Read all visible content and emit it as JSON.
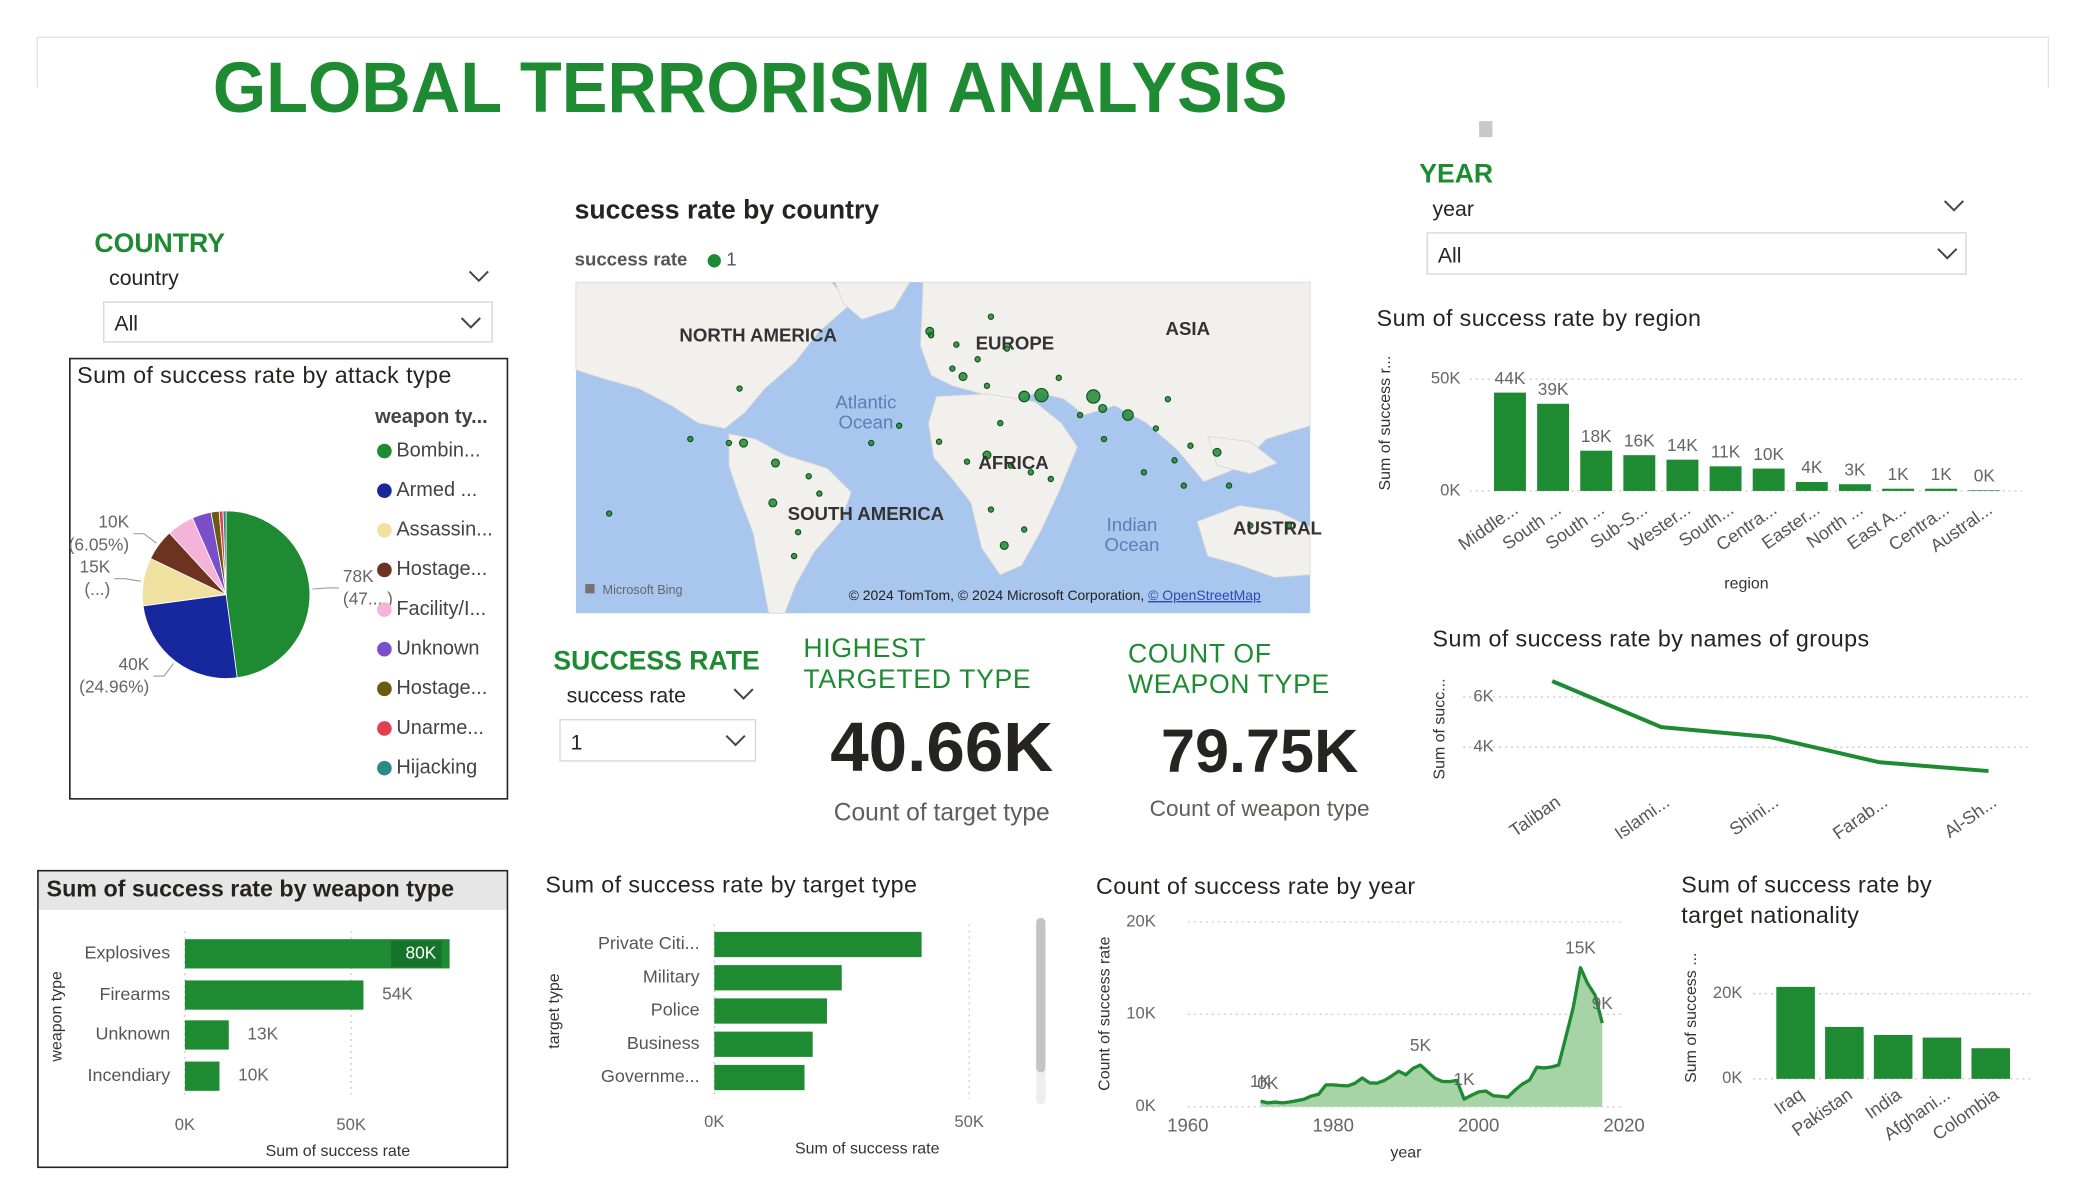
{
  "title": "GLOBAL TERRORISM ANALYSIS",
  "slicers": [
    {
      "header": "COUNTRY",
      "field": "country",
      "selected": "All"
    },
    {
      "header": "YEAR",
      "field": "year",
      "selected": "All"
    },
    {
      "header": "SUCCESS RATE",
      "field": "success rate",
      "selected": "1"
    }
  ],
  "cards": [
    {
      "header": "HIGHEST TARGETED TYPE",
      "value": "40.66K",
      "label": "Count of target type"
    },
    {
      "header": "COUNT OF WEAPON TYPE",
      "value": "79.75K",
      "label": "Count of weapon type"
    }
  ],
  "map": {
    "title": "success rate by country",
    "legend_title": "success rate",
    "legend_item": "1",
    "color": "#1e8a32",
    "labels": [
      "NORTH AMERICA",
      "EUROPE",
      "ASIA",
      "Atlantic Ocean",
      "AFRICA",
      "SOUTH AMERICA",
      "Indian Ocean",
      "AUSTRAL"
    ],
    "provider": "Microsoft Bing",
    "attribution": "© 2024 TomTom, © 2024 Microsoft Corporation,",
    "attribution_link": "© OpenStreetMap"
  },
  "chart_data": [
    {
      "type": "pie",
      "title": "Sum of success rate by attack type",
      "legend_title": "weapon ty...",
      "categories": [
        "Bombin...",
        "Armed ...",
        "Assassin...",
        "Hostage...",
        "Facility/I...",
        "Unknown",
        "Hostage...",
        "Unarme...",
        "Hijacking"
      ],
      "values": [
        77600,
        40435,
        15000,
        9801,
        8500,
        6000,
        2500,
        1200,
        964
      ],
      "value_labels": [
        "78K",
        "40K",
        "15K",
        "10K",
        null,
        null,
        null,
        null,
        null
      ],
      "percent_labels": [
        "(47....)",
        "(24.96%)",
        "(...)",
        "(6.05%)",
        null,
        null,
        null,
        null,
        null
      ],
      "colors": [
        "#1e8a32",
        "#17279e",
        "#f0e1a0",
        "#6e3220",
        "#f5b3da",
        "#7a4fc9",
        "#6b5a12",
        "#e0404f",
        "#2a8a8a"
      ]
    },
    {
      "type": "bar",
      "orientation": "horizontal",
      "title": "Sum of success rate by weapon type",
      "x_label": "Sum of success rate",
      "y_label": "weapon type",
      "categories": [
        "Explosives",
        "Firearms",
        "Unknown",
        "Incendiary"
      ],
      "values": [
        79600,
        53700,
        13200,
        10400
      ],
      "value_labels": [
        "80K",
        "54K",
        "13K",
        "10K"
      ],
      "color": "#1e8a32",
      "xlim": [
        0,
        92000
      ],
      "xticks": [
        {
          "value": 0,
          "label": "0K"
        },
        {
          "value": 50000,
          "label": "50K"
        }
      ],
      "grid": true
    },
    {
      "type": "bar",
      "orientation": "horizontal",
      "title": "Sum of success rate by target type",
      "x_label": "Sum of success rate",
      "y_label": "target type",
      "categories": [
        "Private Citi...",
        "Military",
        "Police",
        "Business",
        "Governme..."
      ],
      "values": [
        40660,
        25000,
        22100,
        19300,
        17700
      ],
      "color": "#1e8a32",
      "xlim": [
        0,
        60000
      ],
      "xticks": [
        {
          "value": 0,
          "label": "0K"
        },
        {
          "value": 50000,
          "label": "50K"
        }
      ],
      "grid": true
    },
    {
      "type": "bar",
      "orientation": "vertical",
      "title": "Sum of success rate by region",
      "x_label": "region",
      "y_label": "Sum of success r...",
      "categories": [
        "Middle...",
        "South ...",
        "South ...",
        "Sub-S...",
        "Wester...",
        "South...",
        "Centra...",
        "Easter...",
        "North ...",
        "East A...",
        "Centra...",
        "Austral..."
      ],
      "values": [
        44000,
        39000,
        18000,
        16000,
        14000,
        11000,
        10000,
        4000,
        3000,
        1000,
        1000,
        300
      ],
      "value_labels": [
        "44K",
        "39K",
        "18K",
        "16K",
        "14K",
        "11K",
        "10K",
        "4K",
        "3K",
        "1K",
        "1K",
        "0K"
      ],
      "color": "#1e8a32",
      "ylim": [
        0,
        55000
      ],
      "yticks": [
        {
          "value": 0,
          "label": "0K"
        },
        {
          "value": 50000,
          "label": "50K"
        }
      ],
      "grid": true
    },
    {
      "type": "line",
      "title": "Sum of success rate by names of groups",
      "y_label": "Sum of succ...",
      "categories": [
        "Taliban",
        "Islami...",
        "Shini...",
        "Farab...",
        "Al-Sh..."
      ],
      "values": [
        6630,
        4800,
        4400,
        3400,
        3050
      ],
      "color": "#1e8a32",
      "ylim": [
        2500,
        7000
      ],
      "yticks": [
        {
          "value": 4000,
          "label": "4K"
        },
        {
          "value": 6000,
          "label": "6K"
        }
      ],
      "grid": true
    },
    {
      "type": "area",
      "title": "Count of success rate by year",
      "x_label": "year",
      "y_label": "Count of success rate",
      "x": [
        1970,
        1971,
        1972,
        1973,
        1974,
        1975,
        1976,
        1977,
        1978,
        1979,
        1980,
        1981,
        1982,
        1983,
        1984,
        1985,
        1986,
        1987,
        1988,
        1989,
        1990,
        1991,
        1992,
        1994,
        1995,
        1996,
        1997,
        1998,
        1999,
        2000,
        2001,
        2002,
        2003,
        2004,
        2005,
        2006,
        2007,
        2008,
        2009,
        2010,
        2011,
        2012,
        2013,
        2014,
        2015,
        2016,
        2017
      ],
      "values": [
        600,
        420,
        510,
        420,
        520,
        660,
        820,
        1170,
        1360,
        2370,
        2370,
        2300,
        2260,
        2550,
        3110,
        2590,
        2550,
        2830,
        3310,
        3850,
        3460,
        4170,
        4510,
        3080,
        2740,
        2720,
        2850,
        830,
        1240,
        1610,
        1700,
        1190,
        1140,
        1040,
        1800,
        2450,
        2890,
        4280,
        4200,
        4300,
        4520,
        7580,
        10710,
        15040,
        13320,
        12090,
        9050
      ],
      "value_labels": [
        "1K",
        "0K",
        null,
        null,
        null,
        null,
        null,
        null,
        null,
        null,
        null,
        null,
        null,
        null,
        null,
        null,
        null,
        null,
        null,
        null,
        null,
        null,
        "5K",
        null,
        null,
        null,
        null,
        "1K",
        null,
        null,
        null,
        null,
        null,
        null,
        null,
        null,
        null,
        null,
        null,
        null,
        null,
        null,
        null,
        "15K",
        null,
        null,
        "9K"
      ],
      "color": "#1e8a32",
      "fill": "#a6d4a6",
      "xlim": [
        1960,
        2020
      ],
      "xticks": [
        1960,
        1980,
        2000,
        2020
      ],
      "ylim": [
        0,
        20000
      ],
      "yticks": [
        {
          "value": 0,
          "label": "0K"
        },
        {
          "value": 10000,
          "label": "10K"
        },
        {
          "value": 20000,
          "label": "20K"
        }
      ],
      "grid": true
    },
    {
      "type": "bar",
      "orientation": "vertical",
      "title": "Sum of success rate by target nationality",
      "y_label": "Sum of success ...",
      "categories": [
        "Iraq",
        "Pakistan",
        "India",
        "Afghani...",
        "Colombia"
      ],
      "values": [
        21600,
        12200,
        10300,
        9700,
        7200
      ],
      "color": "#1e8a32",
      "ylim": [
        0,
        25000
      ],
      "yticks": [
        {
          "value": 0,
          "label": "0K"
        },
        {
          "value": 20000,
          "label": "20K"
        }
      ],
      "grid": true
    }
  ]
}
